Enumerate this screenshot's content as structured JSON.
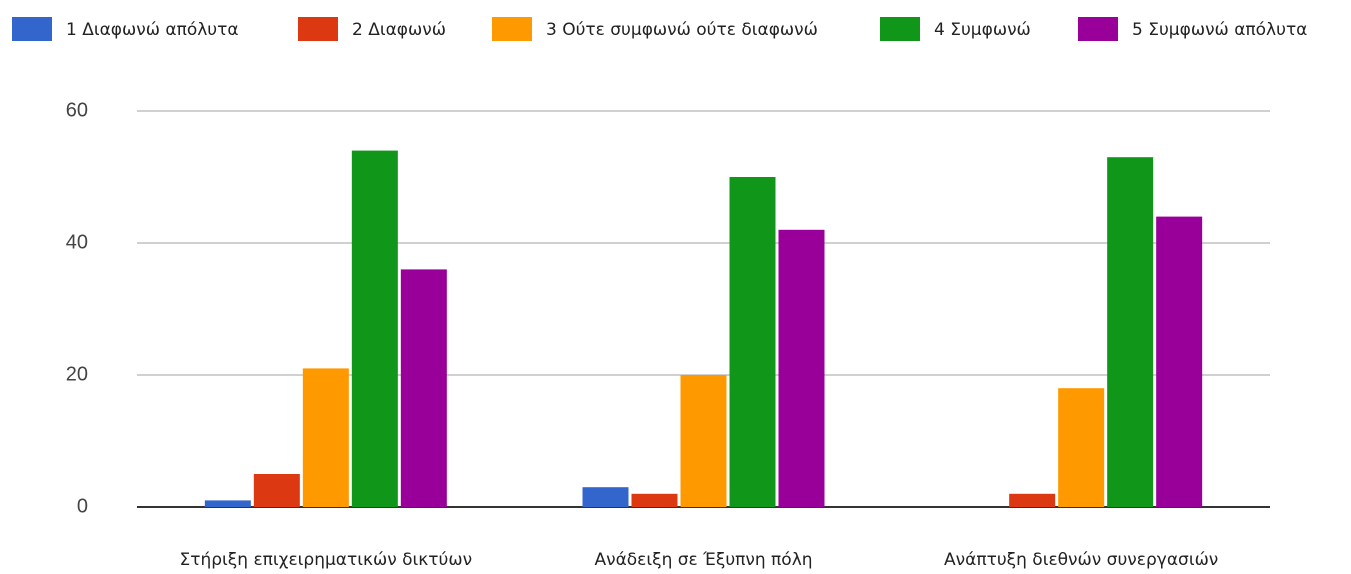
{
  "chart_data": {
    "type": "bar",
    "categories": [
      "Στήριξη επιχειρηματικών δικτύων",
      "Ανάδειξη σε Έξυπνη πόλη",
      "Ανάπτυξη διεθνών συνεργασιών"
    ],
    "series": [
      {
        "name": "1 Διαφωνώ απόλυτα",
        "color": "#3366cc",
        "values": [
          1,
          3,
          0
        ]
      },
      {
        "name": "2 Διαφωνώ",
        "color": "#dc3912",
        "values": [
          5,
          2,
          2
        ]
      },
      {
        "name": "3 Ούτε συμφωνώ ούτε διαφωνώ",
        "color": "#ff9900",
        "values": [
          21,
          20,
          18
        ]
      },
      {
        "name": "4 Συμφωνώ",
        "color": "#109618",
        "values": [
          54,
          50,
          53
        ]
      },
      {
        "name": "5 Συμφωνώ απόλυτα",
        "color": "#990099",
        "values": [
          36,
          42,
          44
        ]
      }
    ],
    "ylim": [
      0,
      60
    ],
    "yticks": [
      0,
      20,
      40,
      60
    ],
    "grid": true,
    "legend": "top"
  }
}
